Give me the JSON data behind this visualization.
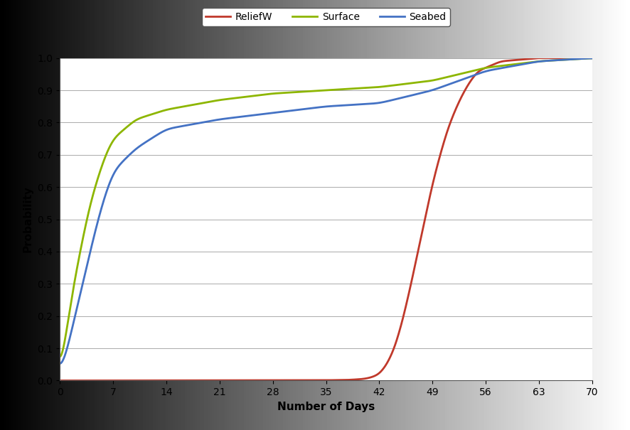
{
  "xlabel": "Number of Days",
  "ylabel": "Probability",
  "xlim": [
    0,
    70
  ],
  "ylim": [
    0.0,
    1.0
  ],
  "xticks": [
    0,
    7,
    14,
    21,
    28,
    35,
    42,
    49,
    56,
    63,
    70
  ],
  "yticks": [
    0.0,
    0.1,
    0.2,
    0.3,
    0.4,
    0.5,
    0.6,
    0.7,
    0.8,
    0.9,
    1.0
  ],
  "reliefW_color": "#c0392b",
  "surface_color": "#8db600",
  "seabed_color": "#4472c4",
  "legend_facecolor": "#ffffff",
  "legend_edgecolor": "#555555",
  "grid_color": "#aaaaaa",
  "xlabel_fontsize": 11,
  "ylabel_fontsize": 11,
  "tick_fontsize": 10,
  "legend_fontsize": 10,
  "linewidth": 2.0,
  "surface_key_points": [
    [
      0,
      0
    ],
    [
      1,
      0.18
    ],
    [
      2,
      0.32
    ],
    [
      3,
      0.44
    ],
    [
      4,
      0.55
    ],
    [
      5,
      0.63
    ],
    [
      6,
      0.7
    ],
    [
      7,
      0.75
    ],
    [
      10,
      0.81
    ],
    [
      14,
      0.84
    ],
    [
      21,
      0.87
    ],
    [
      28,
      0.89
    ],
    [
      35,
      0.9
    ],
    [
      42,
      0.91
    ],
    [
      49,
      0.93
    ],
    [
      56,
      0.97
    ],
    [
      63,
      0.99
    ],
    [
      70,
      1.0
    ]
  ],
  "seabed_key_points": [
    [
      0,
      0
    ],
    [
      1,
      0.1
    ],
    [
      2,
      0.2
    ],
    [
      3,
      0.3
    ],
    [
      4,
      0.4
    ],
    [
      5,
      0.5
    ],
    [
      6,
      0.58
    ],
    [
      7,
      0.65
    ],
    [
      10,
      0.72
    ],
    [
      14,
      0.78
    ],
    [
      21,
      0.81
    ],
    [
      28,
      0.83
    ],
    [
      35,
      0.85
    ],
    [
      42,
      0.86
    ],
    [
      49,
      0.9
    ],
    [
      56,
      0.96
    ],
    [
      63,
      0.99
    ],
    [
      70,
      1.0
    ]
  ],
  "reliefW_key_points": [
    [
      0,
      0
    ],
    [
      35,
      0.001
    ],
    [
      38,
      0.002
    ],
    [
      40,
      0.005
    ],
    [
      41,
      0.01
    ],
    [
      42,
      0.02
    ],
    [
      43,
      0.05
    ],
    [
      44,
      0.1
    ],
    [
      45,
      0.18
    ],
    [
      46,
      0.28
    ],
    [
      47,
      0.39
    ],
    [
      48,
      0.5
    ],
    [
      49,
      0.61
    ],
    [
      50,
      0.7
    ],
    [
      51,
      0.78
    ],
    [
      52,
      0.84
    ],
    [
      53,
      0.89
    ],
    [
      54,
      0.93
    ],
    [
      55,
      0.96
    ],
    [
      56,
      0.97
    ],
    [
      58,
      0.99
    ],
    [
      63,
      1.0
    ],
    [
      70,
      1.0
    ]
  ]
}
